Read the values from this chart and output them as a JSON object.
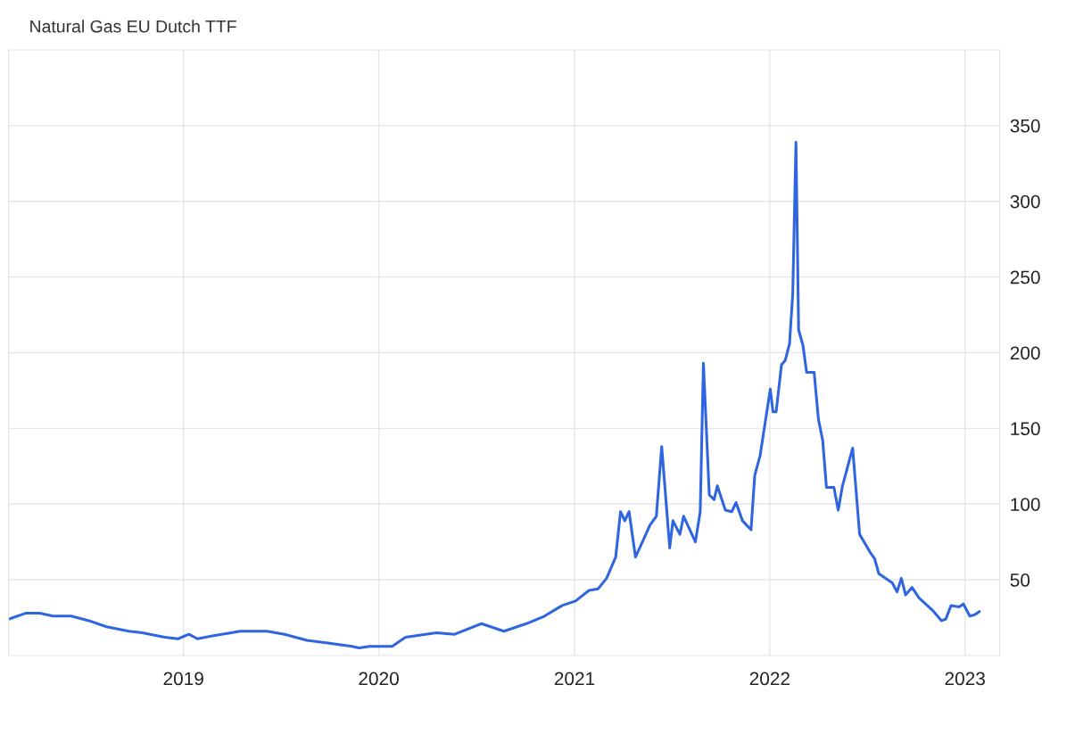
{
  "chart_data": {
    "type": "line",
    "title": "Natural Gas EU Dutch TTF",
    "x": [
      "2018-02-08",
      "2018-03-13",
      "2018-04-07",
      "2018-05-02",
      "2018-06-05",
      "2018-07-08",
      "2018-08-10",
      "2018-09-21",
      "2018-10-16",
      "2018-11-27",
      "2018-12-22",
      "2019-01-11",
      "2019-01-27",
      "2019-02-26",
      "2019-03-31",
      "2019-04-17",
      "2019-05-12",
      "2019-06-06",
      "2019-07-09",
      "2019-08-20",
      "2019-10-01",
      "2019-11-12",
      "2019-11-25",
      "2019-12-15",
      "2020-01-26",
      "2020-02-20",
      "2020-04-18",
      "2020-05-22",
      "2020-07-11",
      "2020-08-22",
      "2020-10-03",
      "2020-11-06",
      "2020-12-09",
      "2021-01-03",
      "2021-01-28",
      "2021-02-14",
      "2021-03-02",
      "2021-03-19",
      "2021-03-28",
      "2021-04-05",
      "2021-04-13",
      "2021-04-25",
      "2021-05-08",
      "2021-05-22",
      "2021-06-03",
      "2021-06-13",
      "2021-06-28",
      "2021-07-04",
      "2021-07-17",
      "2021-07-24",
      "2021-08-15",
      "2021-08-24",
      "2021-08-30",
      "2021-09-10",
      "2021-09-19",
      "2021-09-25",
      "2021-10-10",
      "2021-10-22",
      "2021-10-30",
      "2021-11-11",
      "2021-11-27",
      "2021-12-04",
      "2021-12-14",
      "2022-01-02",
      "2022-01-07",
      "2022-01-13",
      "2022-01-23",
      "2022-01-30",
      "2022-02-07",
      "2022-02-13",
      "2022-02-19",
      "2022-02-24",
      "2022-03-04",
      "2022-03-11",
      "2022-03-25",
      "2022-04-02",
      "2022-04-10",
      "2022-04-17",
      "2022-05-01",
      "2022-05-09",
      "2022-05-17",
      "2022-06-05",
      "2022-06-18",
      "2022-07-08",
      "2022-07-16",
      "2022-07-24",
      "2022-08-18",
      "2022-08-27",
      "2022-09-04",
      "2022-09-12",
      "2022-09-24",
      "2022-10-07",
      "2022-11-01",
      "2022-11-18",
      "2022-11-26",
      "2022-12-06",
      "2022-12-21",
      "2022-12-29",
      "2023-01-10",
      "2023-01-20",
      "2023-01-28"
    ],
    "series": [
      {
        "color": "#2f66e0",
        "values": [
          24,
          28,
          28,
          26,
          26,
          23,
          19,
          16,
          15,
          12,
          11,
          14,
          11,
          13,
          15,
          16,
          16,
          16,
          14,
          10,
          8,
          6,
          5,
          6,
          6,
          12,
          15,
          14,
          21,
          16,
          21,
          26,
          33,
          36,
          43,
          44,
          51,
          65,
          95,
          89,
          95,
          65,
          75,
          86,
          92,
          138,
          71,
          89,
          80,
          92,
          75,
          95,
          193,
          106,
          103,
          112,
          96,
          95,
          101,
          89,
          83,
          119,
          132,
          176,
          161,
          161,
          192,
          195,
          206,
          239,
          339,
          215,
          205,
          187,
          187,
          156,
          142,
          111,
          111,
          96,
          112,
          137,
          80,
          68,
          64,
          54,
          48,
          42,
          51,
          40,
          45,
          38,
          30,
          23,
          24,
          33,
          32,
          34,
          26,
          27,
          29
        ]
      }
    ],
    "xlim": [
      "2018-02-08",
      "2023-03-07"
    ],
    "xticks": [
      "2019",
      "2020",
      "2021",
      "2022",
      "2023"
    ],
    "ylim": [
      0,
      400
    ],
    "yticks": [
      50,
      100,
      150,
      200,
      250,
      300,
      350
    ],
    "grid": true,
    "line_style": "solid",
    "marker": "none"
  }
}
